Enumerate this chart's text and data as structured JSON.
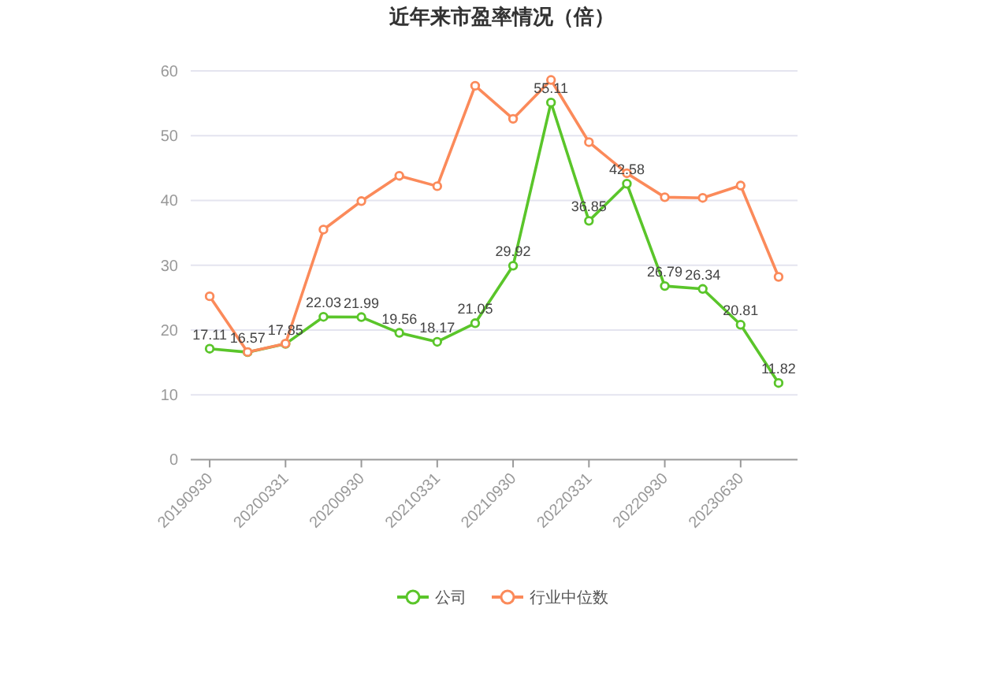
{
  "chart_data": {
    "type": "line",
    "title": "近年来市盈率情况（倍）",
    "categories": [
      "20190930",
      null,
      "20200331",
      null,
      "20200930",
      null,
      "20210331",
      null,
      "20210930",
      null,
      "20220331",
      null,
      "20220930",
      null,
      "20230630",
      null
    ],
    "series": [
      {
        "name": "公司",
        "color": "#5ac52a",
        "values": [
          17.11,
          16.57,
          17.85,
          22.03,
          21.99,
          19.56,
          18.17,
          21.05,
          29.92,
          55.11,
          36.85,
          42.58,
          26.79,
          26.34,
          20.81,
          11.82
        ],
        "value_labels": [
          "17.11",
          "16.57",
          "17.85",
          "22.03",
          "21.99",
          "19.56",
          "18.17",
          "21.05",
          "29.92",
          "55.11",
          "36.85",
          "42.58",
          "26.79",
          "26.34",
          "20.81",
          "11.82"
        ]
      },
      {
        "name": "行业中位数",
        "color": "#fb8a5a",
        "values": [
          25.2,
          16.6,
          17.9,
          35.5,
          39.9,
          43.8,
          42.2,
          57.7,
          52.6,
          58.6,
          49.0,
          44.2,
          40.5,
          40.4,
          42.3,
          28.2
        ]
      }
    ],
    "ylim": [
      0,
      60
    ],
    "yticks": [
      0,
      10,
      20,
      30,
      40,
      50,
      60
    ],
    "grid": "y",
    "legend": "bottom",
    "marker": "circle",
    "line_style": "solid"
  }
}
